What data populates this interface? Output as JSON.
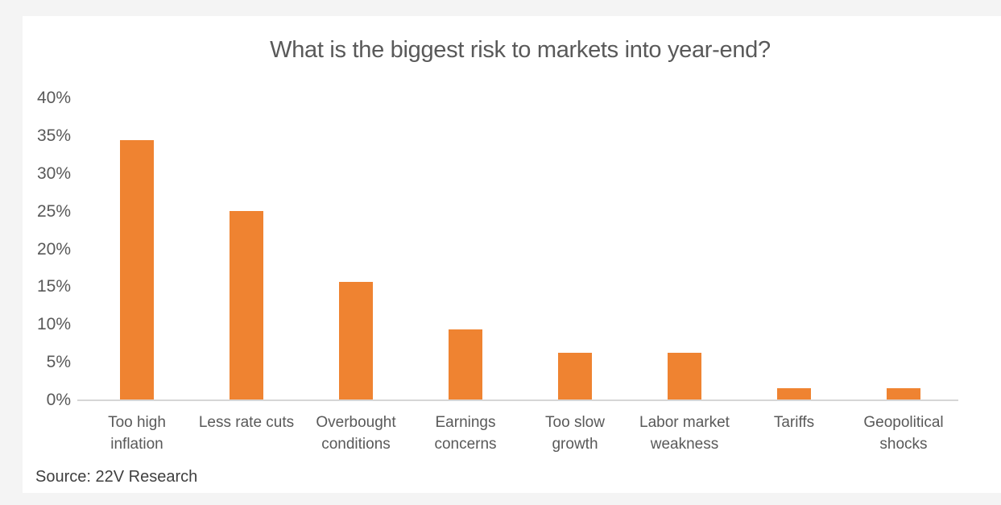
{
  "chart_data": {
    "type": "bar",
    "title": "What is the biggest risk to markets into year-end?",
    "categories": [
      "Too high inflation",
      "Less rate cuts",
      "Overbought conditions",
      "Earnings concerns",
      "Too slow growth",
      "Labor market weakness",
      "Tariffs",
      "Geopolitical shocks"
    ],
    "values": [
      34.5,
      25.1,
      15.7,
      9.4,
      6.3,
      6.3,
      1.6,
      1.6
    ],
    "unit": "%",
    "xlabel": "",
    "ylabel": "",
    "ylim": [
      0,
      40
    ],
    "ytick_labels": [
      "40%",
      "35%",
      "30%",
      "25%",
      "20%",
      "15%",
      "10%",
      "5%",
      "0%"
    ],
    "grid": false,
    "legend": false
  },
  "source_note": "Source: 22V Research",
  "colors": {
    "bar": "#EF8331",
    "title_text": "#595959",
    "axis_text": "#595959",
    "source_text": "#3F3F3F",
    "baseline": "#D6D6D6",
    "chart_background": "#FFFFFF",
    "page_background": "#F4F4F4"
  }
}
